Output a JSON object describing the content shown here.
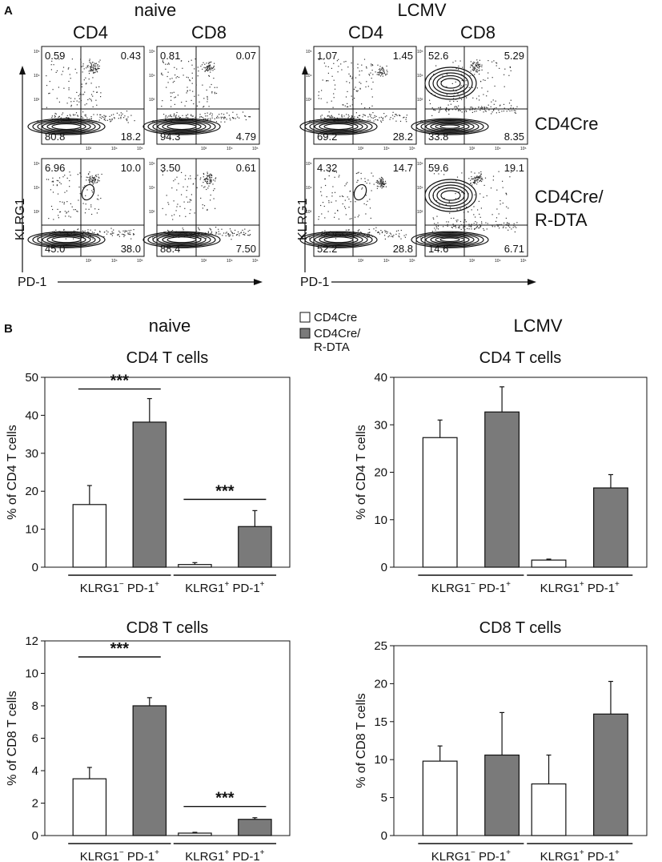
{
  "panel_a": {
    "label": "A",
    "conditions": [
      "naive",
      "LCMV"
    ],
    "markers": [
      "CD4",
      "CD8",
      "CD4",
      "CD8"
    ],
    "genotypes": [
      "CD4Cre",
      "CD4Cre/",
      "R-DTA"
    ],
    "y_axis": "KLRG1",
    "x_axis": "PD-1",
    "tick_labels": [
      "10⁵",
      "10⁴",
      "10³",
      "0",
      "10³",
      "10⁴",
      "10⁵"
    ],
    "quadrants": [
      {
        "ul": "0.59",
        "ur": "0.43",
        "ll": "80.8",
        "lr": "18.2"
      },
      {
        "ul": "0.81",
        "ur": "0.07",
        "ll": "94.3",
        "lr": "4.79"
      },
      {
        "ul": "1.07",
        "ur": "1.45",
        "ll": "69.2",
        "lr": "28.2"
      },
      {
        "ul": "52.6",
        "ur": "5.29",
        "ll": "33.8",
        "lr": "8.35"
      },
      {
        "ul": "6.96",
        "ur": "10.0",
        "ll": "45.0",
        "lr": "38.0"
      },
      {
        "ul": "3.50",
        "ur": "0.61",
        "ll": "88.4",
        "lr": "7.50"
      },
      {
        "ul": "4.32",
        "ur": "14.7",
        "ll": "52.2",
        "lr": "28.8"
      },
      {
        "ul": "59.6",
        "ur": "19.1",
        "ll": "14.6",
        "lr": "6.71"
      }
    ]
  },
  "panel_b": {
    "label": "B",
    "conditions": [
      "naive",
      "LCMV"
    ],
    "legend": {
      "white": "CD4Cre",
      "gray_line1": "CD4Cre/",
      "gray_line2": "R-DTA"
    },
    "group_labels": {
      "g1_main": "KLRG1",
      "g1_sup": "−",
      "g1_rest": " PD-1",
      "g1_sup2": "+",
      "g2_main": "KLRG1",
      "g2_sup": "+",
      "g2_rest": " PD-1",
      "g2_sup2": "+"
    },
    "significance": "***",
    "colors": {
      "white_bar": "#ffffff",
      "gray_bar": "#7a7a7a",
      "stroke": "#111111"
    }
  },
  "chart_data": [
    {
      "type": "bar",
      "title": "CD4 T cells",
      "condition": "naive",
      "ylabel": "% of CD4 T cells",
      "ylim": [
        0,
        50
      ],
      "yticks": [
        "0",
        "10",
        "20",
        "30",
        "40",
        "50"
      ],
      "categories": [
        "KLRG1− PD-1+",
        "KLRG1+ PD-1+"
      ],
      "series": [
        {
          "name": "CD4Cre",
          "values": [
            16.5,
            0.7
          ],
          "errors": [
            5,
            0.5
          ]
        },
        {
          "name": "CD4Cre/R-DTA",
          "values": [
            38.2,
            10.7
          ],
          "errors": [
            6.2,
            4.2
          ]
        }
      ],
      "significance": [
        "***",
        "***"
      ]
    },
    {
      "type": "bar",
      "title": "CD4 T cells",
      "condition": "LCMV",
      "ylabel": "% of CD4 T cells",
      "ylim": [
        0,
        40
      ],
      "yticks": [
        "0",
        "10",
        "20",
        "30",
        "40"
      ],
      "categories": [
        "KLRG1− PD-1+",
        "KLRG1+ PD-1+"
      ],
      "series": [
        {
          "name": "CD4Cre",
          "values": [
            27.3,
            1.5
          ],
          "errors": [
            3.7,
            0.2
          ]
        },
        {
          "name": "CD4Cre/R-DTA",
          "values": [
            32.7,
            16.7
          ],
          "errors": [
            5.3,
            2.8
          ]
        }
      ],
      "significance": [
        "",
        ""
      ]
    },
    {
      "type": "bar",
      "title": "CD8 T cells",
      "condition": "naive",
      "ylabel": "% of CD8 T cells",
      "ylim": [
        0,
        12
      ],
      "yticks": [
        "0",
        "2",
        "4",
        "6",
        "8",
        "10",
        "12"
      ],
      "categories": [
        "KLRG1− PD-1+",
        "KLRG1+ PD-1+"
      ],
      "series": [
        {
          "name": "CD4Cre",
          "values": [
            3.5,
            0.15
          ],
          "errors": [
            0.7,
            0.05
          ]
        },
        {
          "name": "CD4Cre/R-DTA",
          "values": [
            8.0,
            1.0
          ],
          "errors": [
            0.5,
            0.1
          ]
        }
      ],
      "significance": [
        "***",
        "***"
      ]
    },
    {
      "type": "bar",
      "title": "CD8 T cells",
      "condition": "LCMV",
      "ylabel": "% of CD8 T cells",
      "ylim": [
        0,
        25
      ],
      "yticks": [
        "0",
        "5",
        "10",
        "15",
        "20",
        "25"
      ],
      "categories": [
        "KLRG1− PD-1+",
        "KLRG1+ PD-1+"
      ],
      "series": [
        {
          "name": "CD4Cre",
          "values": [
            9.8,
            6.8
          ],
          "errors": [
            2.0,
            3.8
          ]
        },
        {
          "name": "CD4Cre/R-DTA",
          "values": [
            10.6,
            16.0
          ],
          "errors": [
            5.6,
            4.3
          ]
        }
      ],
      "significance": [
        "",
        ""
      ]
    }
  ]
}
